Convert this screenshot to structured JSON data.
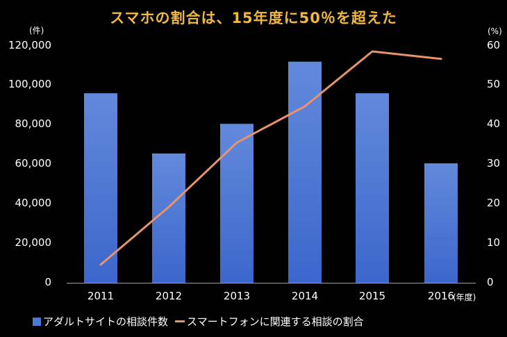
{
  "chart_data": {
    "type": "bar+line",
    "title": "スマホの割合は、15年度に50％を超えた",
    "categories": [
      "2011",
      "2012",
      "2013",
      "2014",
      "2015",
      "2016"
    ],
    "xlabel_unit": "(年度)",
    "series": [
      {
        "name": "アダルトサイトの相談件数",
        "type": "bar",
        "axis": "left",
        "color": "#4a78d8",
        "values": [
          96000,
          65500,
          80500,
          112000,
          96000,
          60500
        ]
      },
      {
        "name": "スマートフォンに関連する相談の割合",
        "type": "line",
        "axis": "right",
        "color": "#e8946a",
        "values": [
          4.6,
          19.2,
          35.5,
          44.7,
          58.6,
          56.7
        ]
      }
    ],
    "y_left": {
      "unit": "(件)",
      "ylim": [
        0,
        120000
      ],
      "ticks": [
        "0",
        "20,000",
        "40,000",
        "60,000",
        "80,000",
        "100,000",
        "120,000"
      ]
    },
    "y_right": {
      "unit": "(%)",
      "ylim": [
        0,
        60
      ],
      "ticks": [
        "0",
        "10",
        "20",
        "30",
        "40",
        "50",
        "60"
      ]
    },
    "grid": false,
    "legend_position": "bottom"
  },
  "title": "スマホの割合は、15年度に50％を超えた",
  "axis": {
    "left_unit": "(件)",
    "right_unit": "(%)",
    "x_unit": "(年度)",
    "left_ticks": [
      "0",
      "20,000",
      "40,000",
      "60,000",
      "80,000",
      "100,000",
      "120,000"
    ],
    "right_ticks": [
      "0",
      "10",
      "20",
      "30",
      "40",
      "50",
      "60"
    ],
    "x_ticks": [
      "2011",
      "2012",
      "2013",
      "2014",
      "2015",
      "2016"
    ]
  },
  "legend": {
    "bar_label": "アダルトサイトの相談件数",
    "line_label": "スマートフォンに関連する相談の割合"
  },
  "colors": {
    "background": "#000000",
    "title": "#f0b840",
    "bar": "#4a78d8",
    "line": "#e8946a",
    "axis": "#a0a0a0"
  }
}
